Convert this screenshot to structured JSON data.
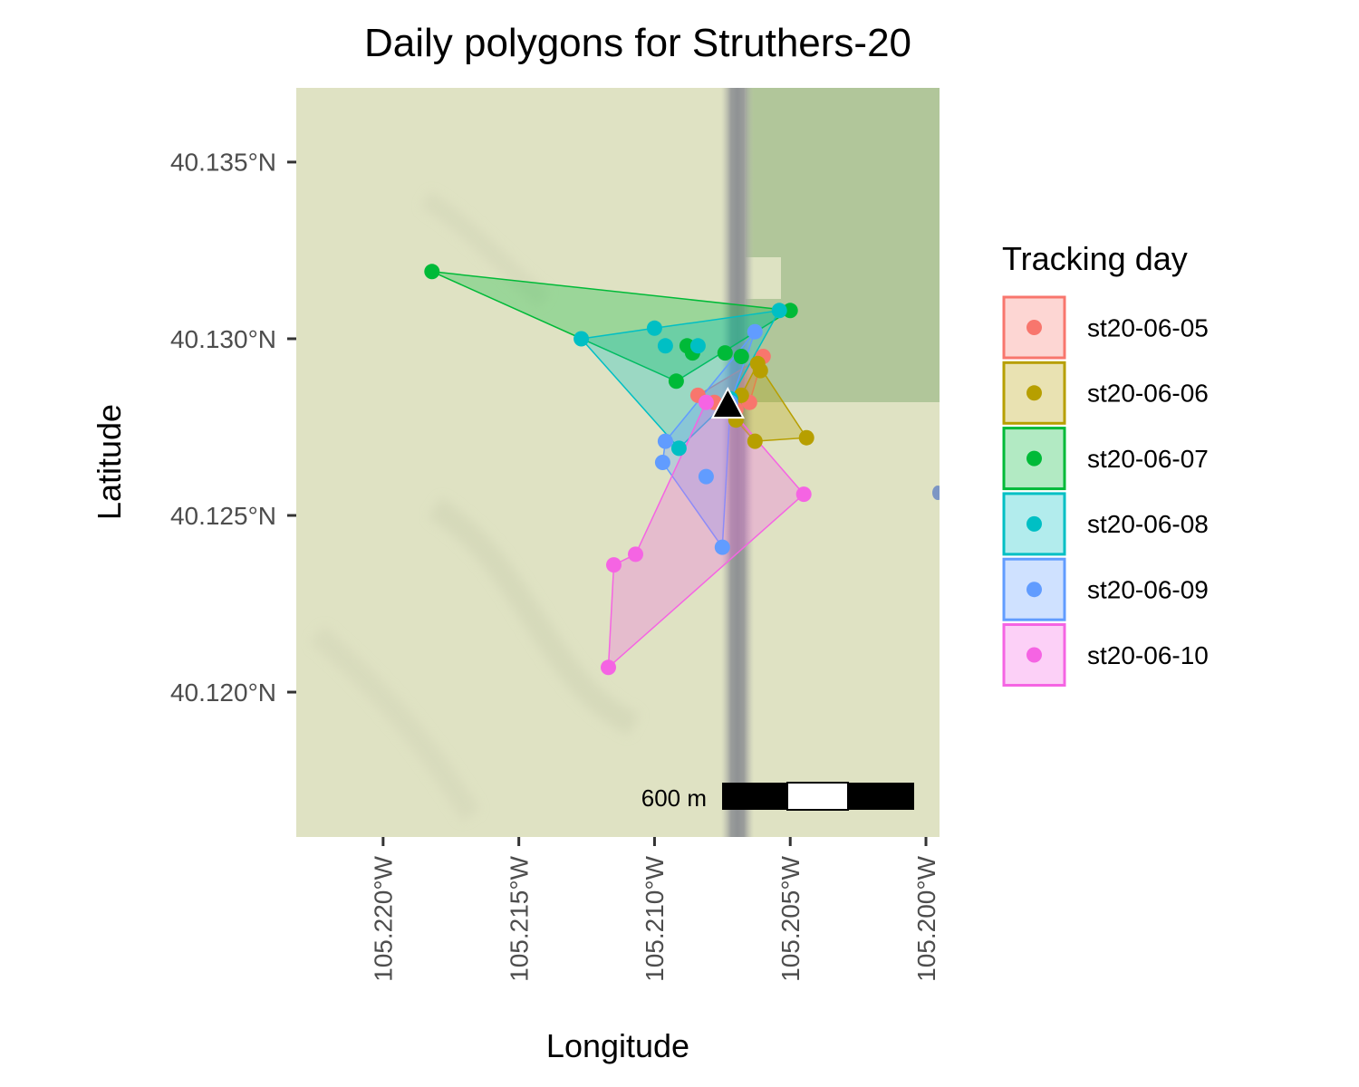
{
  "title": "Daily polygons for Struthers-20",
  "x_axis": {
    "label": "Longitude",
    "ticks": [
      {
        "value": -105.22,
        "label": "105.220°W"
      },
      {
        "value": -105.215,
        "label": "105.215°W"
      },
      {
        "value": -105.21,
        "label": "105.210°W"
      },
      {
        "value": -105.205,
        "label": "105.205°W"
      },
      {
        "value": -105.2,
        "label": "105.200°W"
      }
    ],
    "range": [
      -105.2232,
      -105.1995
    ]
  },
  "y_axis": {
    "label": "Latitude",
    "ticks": [
      {
        "value": 40.135,
        "label": "40.135°N"
      },
      {
        "value": 40.13,
        "label": "40.130°N"
      },
      {
        "value": 40.125,
        "label": "40.125°N"
      },
      {
        "value": 40.12,
        "label": "40.120°N"
      }
    ],
    "range": [
      40.1159,
      40.1371
    ]
  },
  "legend": {
    "title": "Tracking day",
    "placement": "right"
  },
  "scale_bar": {
    "label": "600 m"
  },
  "basemap_colors": {
    "land": "#dfe2c3",
    "forest": "#b1c69a",
    "road": "#9c9f9d",
    "water": "#7c96c4"
  },
  "chart_data": {
    "type": "scatter",
    "description_free": true,
    "site_marker": {
      "lon": -105.2073,
      "lat": 40.1281,
      "shape": "triangle",
      "color": "#000000"
    },
    "series": [
      {
        "name": "st20-06-05",
        "color": "#F8766D",
        "points": [
          [
            -105.2084,
            40.1284
          ],
          [
            -105.2065,
            40.1282
          ],
          [
            -105.206,
            40.1295
          ],
          [
            -105.207,
            40.128
          ],
          [
            -105.2078,
            40.1282
          ]
        ],
        "hull": [
          [
            -105.2084,
            40.1284
          ],
          [
            -105.206,
            40.1295
          ],
          [
            -105.2065,
            40.1282
          ],
          [
            -105.207,
            40.128
          ]
        ]
      },
      {
        "name": "st20-06-06",
        "color": "#B79F00",
        "points": [
          [
            -105.2062,
            40.1293
          ],
          [
            -105.2061,
            40.1291
          ],
          [
            -105.2044,
            40.1272
          ],
          [
            -105.2063,
            40.1271
          ],
          [
            -105.207,
            40.1277
          ],
          [
            -105.2068,
            40.1284
          ]
        ],
        "hull": [
          [
            -105.2062,
            40.1293
          ],
          [
            -105.2044,
            40.1272
          ],
          [
            -105.2063,
            40.1271
          ],
          [
            -105.207,
            40.1277
          ],
          [
            -105.2068,
            40.1284
          ]
        ]
      },
      {
        "name": "st20-06-07",
        "color": "#00BA38",
        "points": [
          [
            -105.2182,
            40.1319
          ],
          [
            -105.205,
            40.1308
          ],
          [
            -105.2088,
            40.1298
          ],
          [
            -105.2086,
            40.1296
          ],
          [
            -105.2074,
            40.1296
          ],
          [
            -105.2092,
            40.1288
          ],
          [
            -105.2068,
            40.1295
          ]
        ],
        "hull": [
          [
            -105.2182,
            40.1319
          ],
          [
            -105.205,
            40.1308
          ],
          [
            -105.2092,
            40.1288
          ]
        ]
      },
      {
        "name": "st20-06-08",
        "color": "#00BFC4",
        "points": [
          [
            -105.2127,
            40.13
          ],
          [
            -105.21,
            40.1303
          ],
          [
            -105.2096,
            40.1298
          ],
          [
            -105.2084,
            40.1298
          ],
          [
            -105.2054,
            40.1308
          ],
          [
            -105.2091,
            40.1269
          ],
          [
            -105.2072,
            40.1283
          ]
        ],
        "hull": [
          [
            -105.2127,
            40.13
          ],
          [
            -105.21,
            40.1303
          ],
          [
            -105.2054,
            40.1308
          ],
          [
            -105.2072,
            40.1283
          ],
          [
            -105.2091,
            40.1269
          ]
        ]
      },
      {
        "name": "st20-06-09",
        "color": "#619CFF",
        "points": [
          [
            -105.2063,
            40.1302
          ],
          [
            -105.2096,
            40.1271
          ],
          [
            -105.2097,
            40.1265
          ],
          [
            -105.2081,
            40.1261
          ],
          [
            -105.2075,
            40.1241
          ],
          [
            -105.2072,
            40.1282
          ]
        ],
        "hull": [
          [
            -105.2063,
            40.1302
          ],
          [
            -105.2096,
            40.1271
          ],
          [
            -105.2097,
            40.1265
          ],
          [
            -105.2075,
            40.1241
          ],
          [
            -105.2072,
            40.1282
          ]
        ]
      },
      {
        "name": "st20-06-10",
        "color": "#F564E3",
        "points": [
          [
            -105.2081,
            40.1282
          ],
          [
            -105.2045,
            40.1256
          ],
          [
            -105.2107,
            40.1239
          ],
          [
            -105.2115,
            40.1236
          ],
          [
            -105.2117,
            40.1207
          ],
          [
            -105.2072,
            40.128
          ]
        ],
        "hull": [
          [
            -105.2081,
            40.1282
          ],
          [
            -105.2072,
            40.128
          ],
          [
            -105.2045,
            40.1256
          ],
          [
            -105.2117,
            40.1207
          ],
          [
            -105.2115,
            40.1236
          ],
          [
            -105.2107,
            40.1239
          ]
        ]
      }
    ]
  }
}
